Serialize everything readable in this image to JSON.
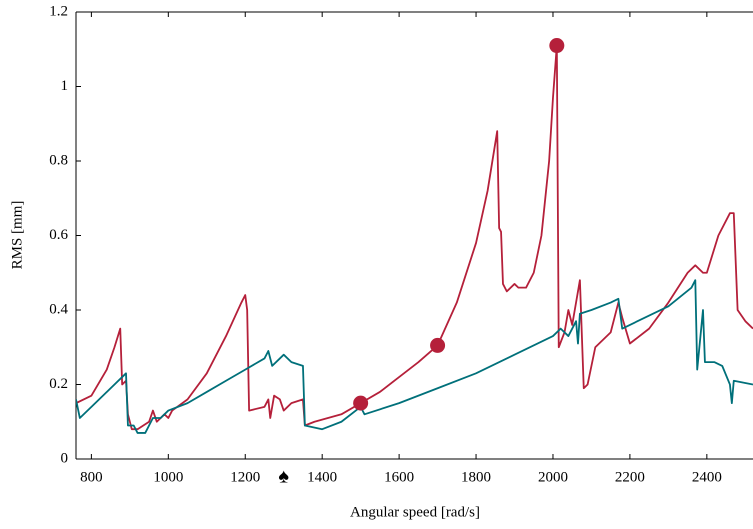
{
  "chart_data": {
    "type": "line",
    "x_label": "Angular speed [rad/s]",
    "y_label": "RMS [mm]",
    "xlim": [
      760,
      2520
    ],
    "ylim": [
      0,
      1.2
    ],
    "xticks": [
      800,
      1000,
      1200,
      1400,
      1600,
      1800,
      2000,
      2200,
      2400
    ],
    "yticks": [
      0,
      0.2,
      0.4,
      0.6,
      0.8,
      1,
      1.2
    ],
    "annotations": [
      {
        "text": "♠",
        "x": 1300
      }
    ],
    "series": [
      {
        "color": "#b5203a",
        "x": [
          760,
          800,
          840,
          860,
          875,
          880,
          890,
          895,
          905,
          920,
          950,
          960,
          970,
          990,
          1000,
          1010,
          1050,
          1100,
          1150,
          1190,
          1200,
          1205,
          1210,
          1250,
          1260,
          1265,
          1275,
          1290,
          1300,
          1320,
          1350,
          1355,
          1380,
          1450,
          1500,
          1550,
          1600,
          1650,
          1700,
          1750,
          1800,
          1830,
          1855,
          1860,
          1865,
          1870,
          1880,
          1900,
          1910,
          1930,
          1950,
          1970,
          1990,
          2000,
          2010,
          2015,
          2030,
          2040,
          2050,
          2070,
          2080,
          2090,
          2110,
          2150,
          2170,
          2180,
          2200,
          2250,
          2300,
          2350,
          2370,
          2390,
          2400,
          2430,
          2460,
          2470,
          2480,
          2500,
          2520
        ],
        "values": [
          0.15,
          0.17,
          0.24,
          0.3,
          0.35,
          0.2,
          0.21,
          0.12,
          0.08,
          0.08,
          0.1,
          0.13,
          0.1,
          0.12,
          0.11,
          0.13,
          0.16,
          0.23,
          0.33,
          0.42,
          0.44,
          0.4,
          0.13,
          0.14,
          0.16,
          0.11,
          0.17,
          0.16,
          0.13,
          0.15,
          0.16,
          0.09,
          0.1,
          0.12,
          0.15,
          0.18,
          0.22,
          0.26,
          0.305,
          0.42,
          0.58,
          0.72,
          0.88,
          0.62,
          0.61,
          0.47,
          0.45,
          0.47,
          0.46,
          0.46,
          0.5,
          0.6,
          0.8,
          0.97,
          1.11,
          0.3,
          0.34,
          0.4,
          0.36,
          0.48,
          0.19,
          0.2,
          0.3,
          0.34,
          0.42,
          0.38,
          0.31,
          0.35,
          0.42,
          0.5,
          0.52,
          0.5,
          0.5,
          0.6,
          0.66,
          0.66,
          0.4,
          0.37,
          0.35
        ]
      },
      {
        "color": "#00707a",
        "x": [
          760,
          770,
          800,
          850,
          880,
          890,
          895,
          910,
          920,
          940,
          960,
          980,
          1000,
          1050,
          1100,
          1150,
          1200,
          1250,
          1260,
          1270,
          1290,
          1300,
          1320,
          1350,
          1355,
          1400,
          1450,
          1500,
          1510,
          1600,
          1700,
          1800,
          1900,
          2000,
          2020,
          2040,
          2060,
          2065,
          2070,
          2100,
          2150,
          2170,
          2180,
          2200,
          2300,
          2360,
          2370,
          2375,
          2390,
          2395,
          2420,
          2440,
          2460,
          2465,
          2470,
          2520
        ],
        "values": [
          0.16,
          0.11,
          0.14,
          0.19,
          0.22,
          0.23,
          0.09,
          0.09,
          0.07,
          0.07,
          0.11,
          0.11,
          0.13,
          0.15,
          0.18,
          0.21,
          0.24,
          0.27,
          0.29,
          0.25,
          0.27,
          0.28,
          0.26,
          0.25,
          0.09,
          0.08,
          0.1,
          0.14,
          0.12,
          0.15,
          0.19,
          0.23,
          0.28,
          0.33,
          0.35,
          0.33,
          0.37,
          0.31,
          0.39,
          0.4,
          0.42,
          0.43,
          0.35,
          0.36,
          0.41,
          0.46,
          0.48,
          0.24,
          0.4,
          0.26,
          0.26,
          0.25,
          0.2,
          0.15,
          0.21,
          0.2
        ]
      }
    ],
    "markers": {
      "color": "#b5203a",
      "x": [
        1500,
        1700,
        2010
      ],
      "values": [
        0.15,
        0.305,
        1.11
      ]
    }
  }
}
